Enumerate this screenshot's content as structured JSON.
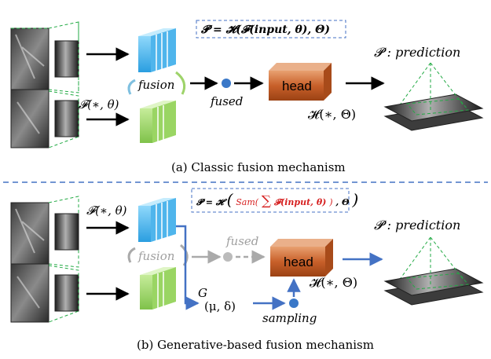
{
  "top_panel": {
    "formula_p": "𝓟 = 𝓗(𝓕(input, θ), Θ)",
    "encoder_label": "𝓕(∗, θ)",
    "fusion_label": "fusion",
    "fused_label": "fused",
    "head_label": "head",
    "head_fn_label": "𝓗(∗, Θ)",
    "prediction_label": "𝓟 : prediction",
    "caption": "(a) Classic fusion mechanism"
  },
  "bottom_panel": {
    "formula_p_prefix": "𝓟 = 𝓗",
    "formula_sam_pre": "Sam(",
    "formula_sum": "∑",
    "formula_inner": "𝓕(input, θ)",
    "formula_sam_post": ")",
    "formula_suffix": ", Θ",
    "encoder_label": "𝓕(∗, θ)",
    "fusion_label": "fusion",
    "fused_label": "fused",
    "head_label": "head",
    "head_fn_label": "𝓗(∗, Θ)",
    "g_label": "G",
    "mu_delta_label": "(μ, δ)",
    "sampling_label": "sampling",
    "prediction_label": "𝓟 : prediction",
    "caption": "(b) Generative-based fusion mechanism"
  },
  "colors": {
    "blue_block": "#5bbfee",
    "green_block": "#9ed36a",
    "head_block": "#c8602a",
    "dashed_divider": "#4472c4",
    "blue_arrow": "#4472c4",
    "green_dash": "#22aa44",
    "sam_red": "#d62020",
    "gray_text": "#a0a0a0"
  }
}
